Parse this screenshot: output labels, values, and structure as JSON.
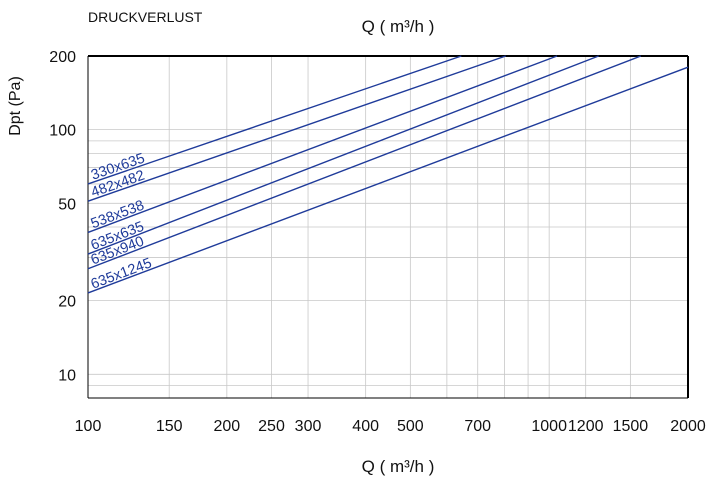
{
  "chart_data": {
    "type": "line",
    "title": "DRUCKVERLUST",
    "top_axis_label": "Q ( m³/h )",
    "xlabel": "Q ( m³/h )",
    "ylabel": "Dpt (Pa)",
    "x_scale": "log",
    "y_scale": "log",
    "xlim": [
      100,
      2000
    ],
    "ylim": [
      8,
      200
    ],
    "x_ticks": [
      100,
      150,
      200,
      250,
      300,
      400,
      500,
      700,
      1000,
      1200,
      1500,
      2000
    ],
    "x_tick_labels": [
      "100",
      "150",
      "200",
      "250",
      "300",
      "400",
      "500",
      "700",
      "1000",
      "1200",
      "1500",
      "2000"
    ],
    "y_ticks": [
      10,
      20,
      50,
      100,
      200
    ],
    "y_tick_labels": [
      "10",
      "20",
      "50",
      "100",
      "200"
    ],
    "grid": true,
    "line_color": "#1f3b9a",
    "series": [
      {
        "name": "330x635",
        "points": [
          [
            100,
            60
          ],
          [
            645,
            200
          ]
        ]
      },
      {
        "name": "482x482",
        "points": [
          [
            100,
            51
          ],
          [
            805,
            200
          ]
        ]
      },
      {
        "name": "538x538",
        "points": [
          [
            100,
            38
          ],
          [
            1040,
            200
          ]
        ]
      },
      {
        "name": "635x635",
        "points": [
          [
            100,
            31
          ],
          [
            1280,
            200
          ]
        ]
      },
      {
        "name": "635x940",
        "points": [
          [
            100,
            27
          ],
          [
            1580,
            200
          ]
        ]
      },
      {
        "name": "635x1245",
        "points": [
          [
            100,
            21.5
          ],
          [
            2000,
            180
          ]
        ]
      }
    ]
  }
}
